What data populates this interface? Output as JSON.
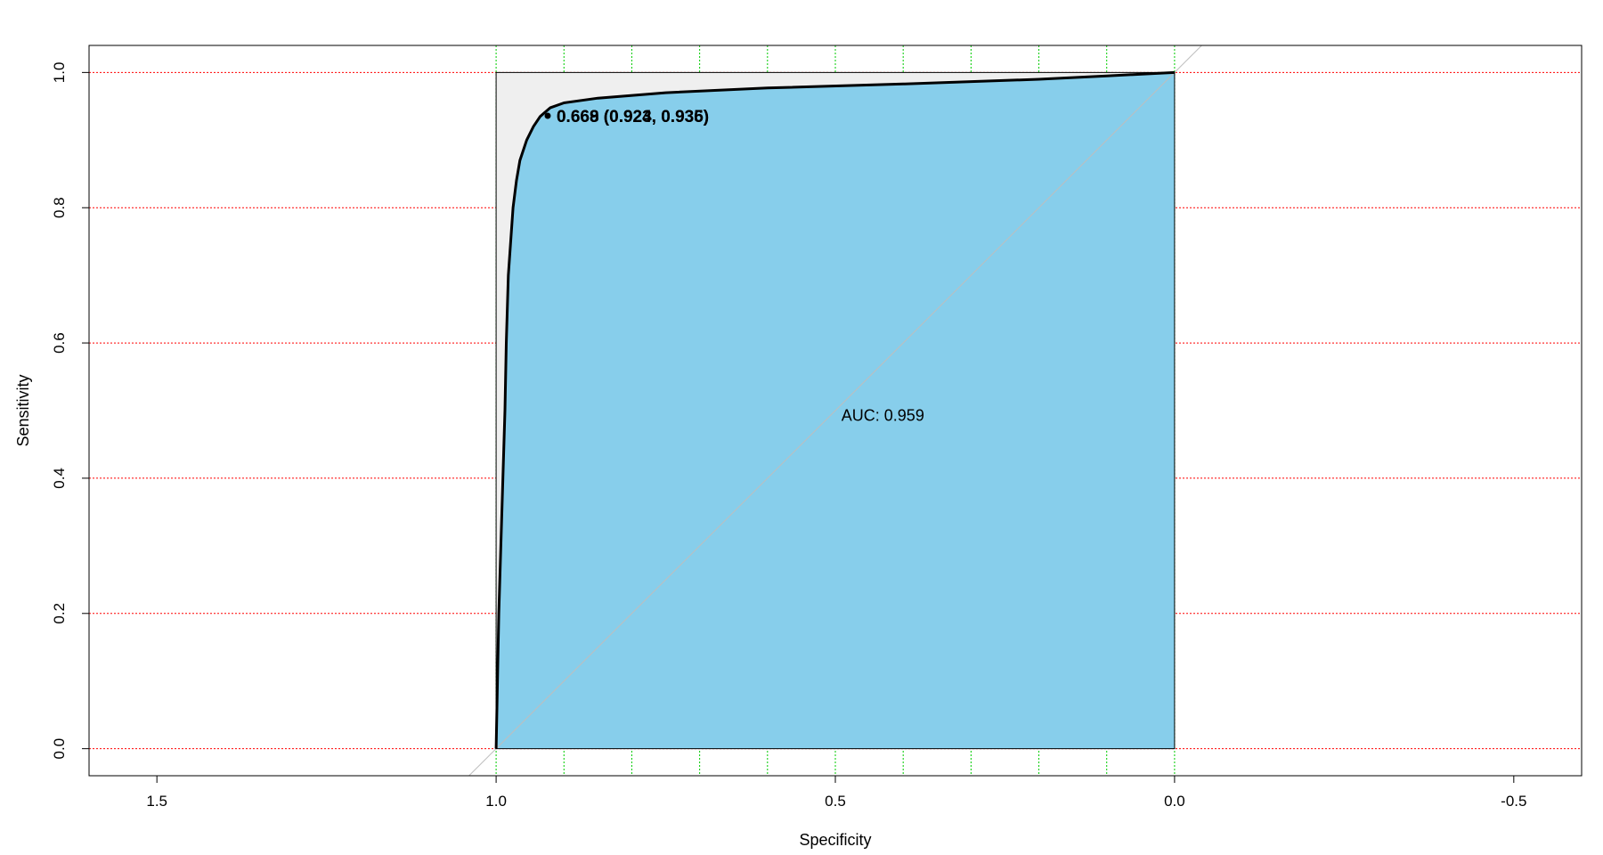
{
  "chart_data": {
    "type": "line",
    "xlabel": "Specificity",
    "ylabel": "Sensitivity",
    "x_reversed": true,
    "xlim": [
      1.6,
      -0.6
    ],
    "ylim": [
      -0.04,
      1.04
    ],
    "x_ticks": [
      {
        "value": 1.5,
        "label": "1.5"
      },
      {
        "value": 1.0,
        "label": "1.0"
      },
      {
        "value": 0.5,
        "label": "0.5"
      },
      {
        "value": 0.0,
        "label": "0.0"
      },
      {
        "value": -0.5,
        "label": "-0.5"
      }
    ],
    "y_ticks": [
      {
        "value": 0.0,
        "label": "0.0"
      },
      {
        "value": 0.2,
        "label": "0.2"
      },
      {
        "value": 0.4,
        "label": "0.4"
      },
      {
        "value": 0.6,
        "label": "0.6"
      },
      {
        "value": 0.8,
        "label": "0.8"
      },
      {
        "value": 1.0,
        "label": "1.0"
      }
    ],
    "grid": {
      "horizontal": [
        0.0,
        0.2,
        0.4,
        0.6,
        0.8,
        1.0
      ],
      "vertical": [
        1.0,
        0.9,
        0.8,
        0.7,
        0.6,
        0.5,
        0.4,
        0.3,
        0.2,
        0.1,
        0.0
      ],
      "h_color": "#ff0000",
      "v_color": "#00cc00"
    },
    "series": [
      {
        "points": [
          [
            1.0,
            0.0
          ],
          [
            0.998,
            0.1
          ],
          [
            0.996,
            0.2
          ],
          [
            0.993,
            0.3
          ],
          [
            0.99,
            0.4
          ],
          [
            0.987,
            0.5
          ],
          [
            0.985,
            0.6
          ],
          [
            0.982,
            0.7
          ],
          [
            0.975,
            0.8
          ],
          [
            0.97,
            0.84
          ],
          [
            0.965,
            0.87
          ],
          [
            0.955,
            0.9
          ],
          [
            0.945,
            0.92
          ],
          [
            0.935,
            0.935
          ],
          [
            0.92,
            0.948
          ],
          [
            0.9,
            0.955
          ],
          [
            0.85,
            0.962
          ],
          [
            0.75,
            0.97
          ],
          [
            0.6,
            0.977
          ],
          [
            0.4,
            0.983
          ],
          [
            0.2,
            0.99
          ],
          [
            0.1,
            0.995
          ],
          [
            0.0,
            1.0
          ]
        ],
        "color": "#000000",
        "fill": "#87ceeb"
      }
    ],
    "ideal_region_color": "#efefef",
    "diagonal_color": "#bebebe",
    "auc_label": "AUC: 0.959",
    "threshold_labels": [
      "0.669 (0.923, 0.935)",
      "0.668 (0.924, 0.936)"
    ],
    "threshold_point": [
      0.924,
      0.936
    ]
  }
}
